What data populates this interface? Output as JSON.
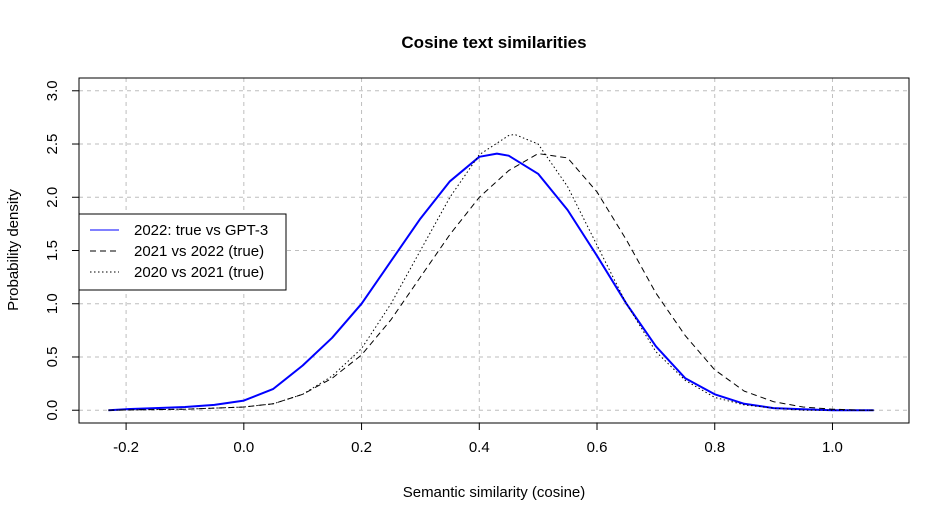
{
  "chart_data": {
    "type": "line",
    "title": "Cosine text similarities",
    "xlabel": "Semantic similarity (cosine)",
    "ylabel": "Probability density",
    "xlim": [
      -0.28,
      1.13
    ],
    "ylim": [
      -0.12,
      3.12
    ],
    "x_ticks": [
      "-0.2",
      "0.0",
      "0.2",
      "0.4",
      "0.6",
      "0.8",
      "1.0"
    ],
    "x_tick_values": [
      -0.2,
      0.0,
      0.2,
      0.4,
      0.6,
      0.8,
      1.0
    ],
    "y_ticks": [
      "0.0",
      "0.5",
      "1.0",
      "1.5",
      "2.0",
      "2.5",
      "3.0"
    ],
    "y_tick_values": [
      0.0,
      0.5,
      1.0,
      1.5,
      2.0,
      2.5,
      3.0
    ],
    "grid": true,
    "legend_position": "left",
    "series": [
      {
        "name": "2022: true vs GPT-3",
        "color": "#0000ff",
        "style": "solid",
        "x": [
          -0.23,
          -0.2,
          -0.15,
          -0.1,
          -0.05,
          0.0,
          0.05,
          0.1,
          0.15,
          0.2,
          0.25,
          0.3,
          0.35,
          0.4,
          0.43,
          0.45,
          0.5,
          0.55,
          0.6,
          0.65,
          0.7,
          0.75,
          0.8,
          0.85,
          0.9,
          0.95,
          1.0,
          1.05,
          1.07
        ],
        "y": [
          0.0,
          0.01,
          0.02,
          0.03,
          0.05,
          0.09,
          0.2,
          0.42,
          0.68,
          1.0,
          1.4,
          1.8,
          2.15,
          2.38,
          2.41,
          2.39,
          2.22,
          1.88,
          1.45,
          1.0,
          0.6,
          0.3,
          0.15,
          0.06,
          0.02,
          0.01,
          0.0,
          0.0,
          0.0
        ]
      },
      {
        "name": "2021 vs 2022 (true)",
        "color": "#000000",
        "style": "dashed",
        "x": [
          -0.23,
          -0.1,
          0.0,
          0.05,
          0.1,
          0.15,
          0.2,
          0.25,
          0.3,
          0.35,
          0.4,
          0.45,
          0.5,
          0.55,
          0.6,
          0.65,
          0.7,
          0.75,
          0.8,
          0.85,
          0.9,
          0.95,
          1.0,
          1.05,
          1.07
        ],
        "y": [
          0.0,
          0.01,
          0.03,
          0.06,
          0.15,
          0.3,
          0.52,
          0.85,
          1.25,
          1.65,
          2.0,
          2.25,
          2.41,
          2.37,
          2.05,
          1.6,
          1.1,
          0.7,
          0.38,
          0.18,
          0.08,
          0.03,
          0.01,
          0.0,
          0.0
        ]
      },
      {
        "name": "2020 vs 2021 (true)",
        "color": "#000000",
        "style": "dotted",
        "x": [
          -0.23,
          -0.1,
          0.0,
          0.05,
          0.1,
          0.15,
          0.2,
          0.25,
          0.3,
          0.35,
          0.4,
          0.45,
          0.46,
          0.5,
          0.55,
          0.6,
          0.65,
          0.7,
          0.75,
          0.8,
          0.85,
          0.9,
          0.95,
          1.0,
          1.07
        ],
        "y": [
          0.0,
          0.01,
          0.03,
          0.06,
          0.15,
          0.32,
          0.58,
          1.0,
          1.5,
          2.0,
          2.4,
          2.58,
          2.59,
          2.5,
          2.1,
          1.55,
          1.0,
          0.55,
          0.28,
          0.12,
          0.05,
          0.02,
          0.0,
          0.0,
          0.0
        ]
      }
    ]
  }
}
